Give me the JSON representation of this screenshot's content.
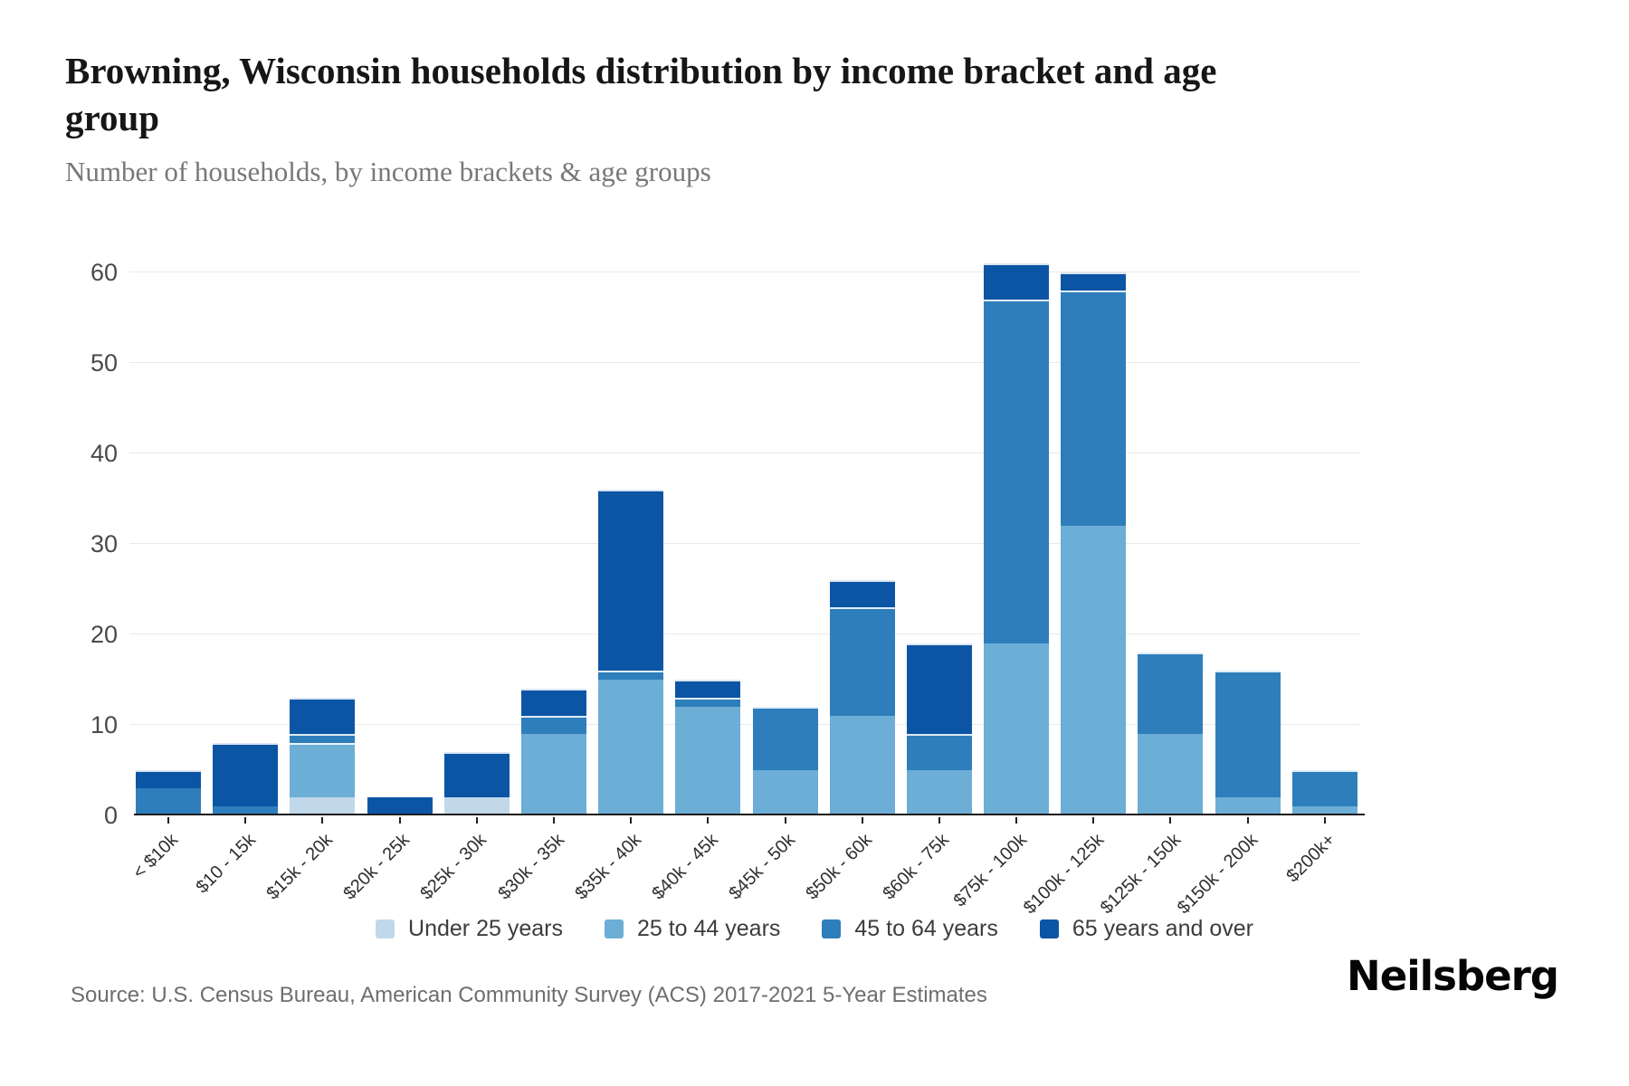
{
  "header": {
    "title": "Browning, Wisconsin households distribution by income bracket and age group",
    "subtitle": "Number of households, by income brackets & age groups"
  },
  "chart_data": {
    "type": "bar",
    "stacked": true,
    "title": "Browning, Wisconsin households distribution by income bracket and age group",
    "subtitle": "Number of households, by income brackets & age groups",
    "xlabel": "",
    "ylabel": "Number of households",
    "ylim": [
      0,
      65
    ],
    "yticks": [
      0,
      10,
      20,
      30,
      40,
      50,
      60
    ],
    "grid": "horizontal",
    "legend_position": "bottom",
    "categories": [
      "< $10k",
      "$10 - 15k",
      "$15k - 20k",
      "$20k - 25k",
      "$25k - 30k",
      "$30k - 35k",
      "$35k - 40k",
      "$40k - 45k",
      "$45k - 50k",
      "$50k - 60k",
      "$60k - 75k",
      "$75k - 100k",
      "$100k - 125k",
      "$125k - 150k",
      "$150k - 200k",
      "$200k+"
    ],
    "series": [
      {
        "name": "Under 25 years",
        "color": "#c0d8ea",
        "values": [
          0,
          0,
          2,
          0,
          2,
          0,
          0,
          0,
          0,
          0,
          0,
          0,
          0,
          0,
          0,
          0
        ]
      },
      {
        "name": "25 to 44 years",
        "color": "#6caed6",
        "values": [
          0,
          0,
          6,
          0,
          0,
          9,
          15,
          12,
          5,
          11,
          5,
          19,
          32,
          9,
          2,
          1
        ]
      },
      {
        "name": "45 to 64 years",
        "color": "#2e7ebc",
        "values": [
          3,
          1,
          1,
          0,
          0,
          2,
          1,
          1,
          7,
          12,
          4,
          38,
          26,
          9,
          14,
          4
        ]
      },
      {
        "name": "65 years and over",
        "color": "#0c55a5",
        "values": [
          2,
          7,
          4,
          2,
          5,
          3,
          20,
          2,
          0,
          3,
          10,
          4,
          2,
          0,
          0,
          0
        ]
      }
    ],
    "totals": [
      5,
      8,
      13,
      2,
      7,
      14,
      36,
      15,
      12,
      26,
      19,
      61,
      60,
      18,
      16,
      5
    ]
  },
  "footer": {
    "source": "Source: U.S. Census Bureau, American Community Survey (ACS) 2017-2021 5-Year Estimates",
    "brand": "Neilsberg"
  }
}
